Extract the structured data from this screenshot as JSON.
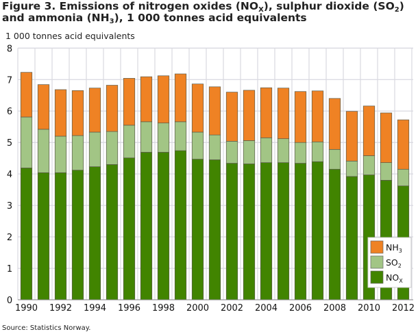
{
  "title_parts": [
    {
      "text": "Figure 3. Emissions of nitrogen oxides (NO"
    },
    {
      "text": "X",
      "sub": true
    },
    {
      "text": "), sulphur dioxide (SO"
    },
    {
      "text": "2",
      "sub": true
    },
    {
      "text": ") and ammonia (NH"
    },
    {
      "text": "3",
      "sub": true
    },
    {
      "text": "), 1 000 tonnes acid equivalents"
    }
  ],
  "source": "Source: Statistics Norway.",
  "chart_data": {
    "type": "bar",
    "stacked": true,
    "ylabel": "1 000 tonnes acid equivalents",
    "ylim": [
      0,
      8
    ],
    "yticks": [
      0,
      1,
      2,
      3,
      4,
      5,
      6,
      7,
      8
    ],
    "grid": true,
    "legend_position": "bottom-right",
    "categories": [
      1990,
      1991,
      1992,
      1993,
      1994,
      1995,
      1996,
      1997,
      1998,
      1999,
      2000,
      2001,
      2002,
      2003,
      2004,
      2005,
      2006,
      2007,
      2008,
      2009,
      2010,
      2011,
      2012
    ],
    "xtick_labels": [
      "1990",
      "1992",
      "1994",
      "1996",
      "1998",
      "2000",
      "2002",
      "2004",
      "2006",
      "2008",
      "2010",
      "2012"
    ],
    "series": [
      {
        "name": "NOx",
        "legend_base": "NO",
        "legend_sub": "X",
        "color": "#418400",
        "values": [
          4.19,
          4.04,
          4.04,
          4.12,
          4.23,
          4.3,
          4.51,
          4.69,
          4.69,
          4.74,
          4.47,
          4.45,
          4.34,
          4.32,
          4.36,
          4.36,
          4.34,
          4.39,
          4.15,
          3.92,
          3.97,
          3.8,
          3.62
        ]
      },
      {
        "name": "SO2",
        "legend_base": "SO",
        "legend_sub": "2",
        "color": "#a2c585",
        "values": [
          1.62,
          1.38,
          1.16,
          1.1,
          1.1,
          1.05,
          1.04,
          0.97,
          0.93,
          0.92,
          0.86,
          0.79,
          0.7,
          0.74,
          0.79,
          0.76,
          0.66,
          0.63,
          0.63,
          0.49,
          0.61,
          0.56,
          0.53
        ]
      },
      {
        "name": "NH3",
        "legend_base": "NH",
        "legend_sub": "3",
        "color": "#ef8224",
        "values": [
          1.42,
          1.42,
          1.48,
          1.43,
          1.4,
          1.47,
          1.49,
          1.43,
          1.5,
          1.52,
          1.53,
          1.53,
          1.56,
          1.6,
          1.59,
          1.61,
          1.62,
          1.62,
          1.62,
          1.58,
          1.58,
          1.58,
          1.57
        ]
      }
    ]
  }
}
